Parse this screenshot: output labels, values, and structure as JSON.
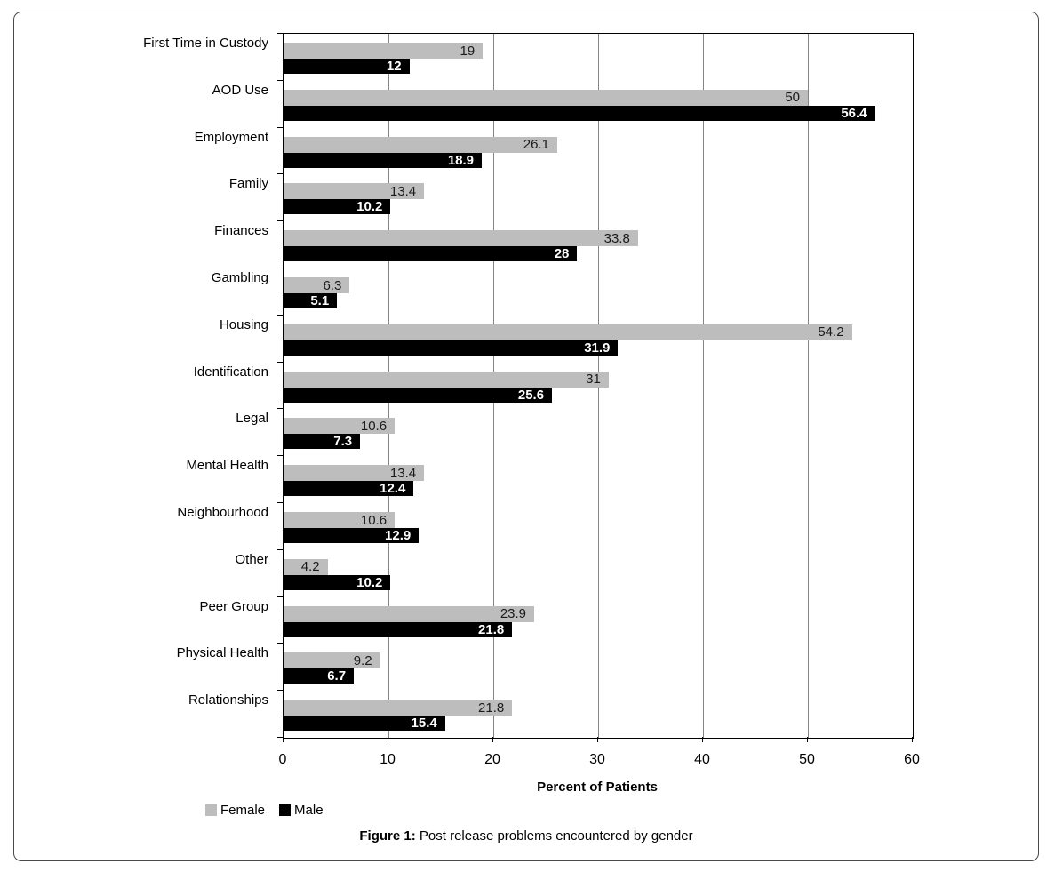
{
  "figure": {
    "caption_prefix": "Figure 1:",
    "caption_rest": " Post release problems encountered by gender"
  },
  "chart_data": {
    "type": "bar",
    "orientation": "horizontal",
    "title": "",
    "xlabel": "Percent of Patients",
    "ylabel": "",
    "xlim": [
      0,
      60
    ],
    "xticks": [
      0,
      10,
      20,
      30,
      40,
      50,
      60
    ],
    "grid": true,
    "legend_position": "bottom-left",
    "categories": [
      "First Time in Custody",
      "AOD Use",
      "Employment",
      "Family",
      "Finances",
      "Gambling",
      "Housing",
      "Identification",
      "Legal",
      "Mental Health",
      "Neighbourhood",
      "Other",
      "Peer Group",
      "Physical Health",
      "Relationships"
    ],
    "series": [
      {
        "name": "Female",
        "color": "#bdbdbd",
        "values": [
          19,
          50,
          26.1,
          13.4,
          33.8,
          6.3,
          54.2,
          31,
          10.6,
          13.4,
          10.6,
          4.2,
          23.9,
          9.2,
          21.8
        ]
      },
      {
        "name": "Male",
        "color": "#000000",
        "values": [
          12,
          56.4,
          18.9,
          10.2,
          28,
          5.1,
          31.9,
          25.6,
          7.3,
          12.4,
          12.9,
          10.2,
          21.8,
          6.7,
          15.4
        ]
      }
    ],
    "value_labels": true
  },
  "colors": {
    "gridline": "#848484",
    "plot_border": "#000000",
    "female_label_text": "#1a1a1a",
    "male_label_text": "#ffffff"
  }
}
